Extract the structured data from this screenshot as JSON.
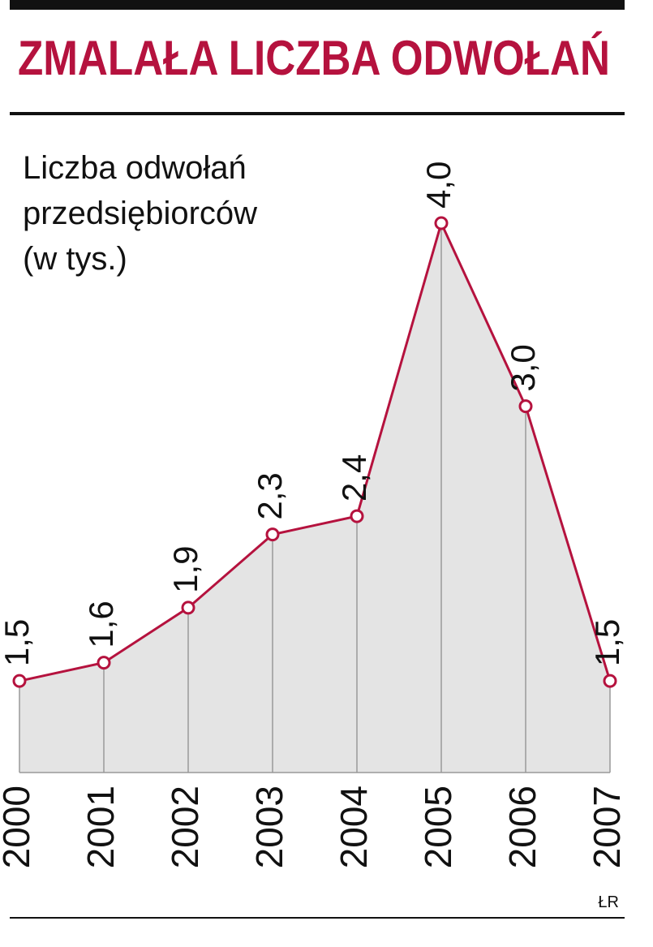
{
  "chart_data": {
    "type": "line",
    "title": "ZMALAŁA LICZBA ODWOŁAŃ",
    "subtitle": [
      "Liczba odwołań",
      "przedsiębiorców",
      "(w tys.)"
    ],
    "categories": [
      "2000",
      "2001",
      "2002",
      "2003",
      "2004",
      "2005",
      "2006",
      "2007"
    ],
    "values": [
      1.5,
      1.6,
      1.9,
      2.3,
      2.4,
      4.0,
      3.0,
      1.5
    ],
    "value_labels": [
      "1,5",
      "1,6",
      "1,9",
      "2,3",
      "2,4",
      "4,0",
      "3,0",
      "1,5"
    ],
    "color": "#b5123e",
    "fill": "#e4e4e4",
    "ylim": [
      1,
      4
    ],
    "source": "ŁR"
  }
}
